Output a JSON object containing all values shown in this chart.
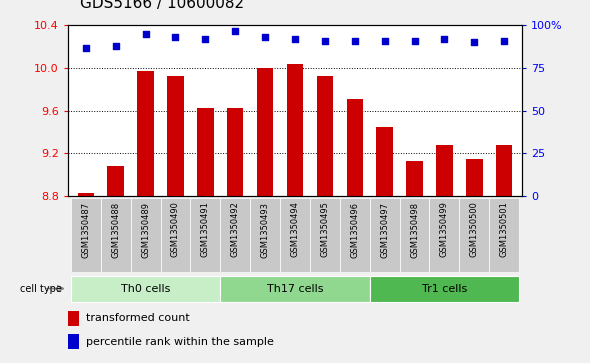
{
  "title": "GDS5166 / 10600082",
  "samples": [
    "GSM1350487",
    "GSM1350488",
    "GSM1350489",
    "GSM1350490",
    "GSM1350491",
    "GSM1350492",
    "GSM1350493",
    "GSM1350494",
    "GSM1350495",
    "GSM1350496",
    "GSM1350497",
    "GSM1350498",
    "GSM1350499",
    "GSM1350500",
    "GSM1350501"
  ],
  "transformed_count": [
    8.83,
    9.08,
    9.97,
    9.93,
    9.63,
    9.63,
    10.0,
    10.04,
    9.93,
    9.71,
    9.45,
    9.13,
    9.28,
    9.15,
    9.28
  ],
  "percentile_rank": [
    87,
    88,
    95,
    93,
    92,
    97,
    93,
    92,
    91,
    91,
    91,
    91,
    92,
    90,
    91
  ],
  "groups": [
    {
      "label": "Th0 cells",
      "start": 0,
      "end": 5,
      "color": "#c8eec8"
    },
    {
      "label": "Th17 cells",
      "start": 5,
      "end": 10,
      "color": "#90d890"
    },
    {
      "label": "Tr1 cells",
      "start": 10,
      "end": 15,
      "color": "#50b850"
    }
  ],
  "ylim_left": [
    8.8,
    10.4
  ],
  "ylim_right": [
    0,
    100
  ],
  "bar_color": "#cc0000",
  "dot_color": "#0000cc",
  "sample_bg_color": "#c8c8c8",
  "fig_bg_color": "#f0f0f0",
  "legend_tc": "transformed count",
  "legend_pr": "percentile rank within the sample",
  "yticks_left": [
    8.8,
    9.2,
    9.6,
    10.0,
    10.4
  ],
  "yticks_right": [
    0,
    25,
    50,
    75,
    100
  ],
  "title_fontsize": 11,
  "axis_fontsize": 8,
  "tick_fontsize": 6,
  "group_label_fontsize": 8,
  "legend_fontsize": 8
}
